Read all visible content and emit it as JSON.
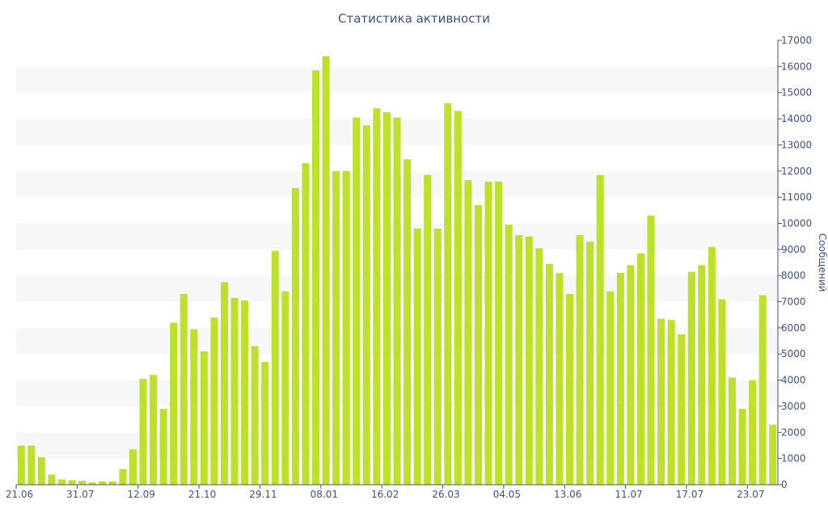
{
  "chart_data": {
    "type": "bar",
    "title": "Статистика активности",
    "ylabel": "Сообщений",
    "xlabel": "",
    "ylim": [
      0,
      17000
    ],
    "yticks": [
      0,
      1000,
      2000,
      3000,
      4000,
      5000,
      6000,
      7000,
      8000,
      9000,
      10000,
      11000,
      12000,
      13000,
      14000,
      15000,
      16000,
      17000
    ],
    "y_axis_side": "right",
    "grid": "alternating horizontal bands",
    "bar_color": "#bde12b",
    "band_color": "#f7f7f7",
    "axis_color": "#3d5283",
    "x_tick_labels": [
      {
        "label": "21.06",
        "index": 0
      },
      {
        "label": "31.07",
        "index": 6
      },
      {
        "label": "12.09",
        "index": 12
      },
      {
        "label": "21.10",
        "index": 18
      },
      {
        "label": "29.11",
        "index": 24
      },
      {
        "label": "08.01",
        "index": 30
      },
      {
        "label": "16.02",
        "index": 36
      },
      {
        "label": "26.03",
        "index": 42
      },
      {
        "label": "04.05",
        "index": 48
      },
      {
        "label": "13.06",
        "index": 54
      },
      {
        "label": "11.07",
        "index": 60
      },
      {
        "label": "17.07",
        "index": 66
      },
      {
        "label": "23.07",
        "index": 72
      }
    ],
    "values": [
      1500,
      1500,
      1050,
      380,
      200,
      170,
      150,
      90,
      130,
      130,
      600,
      1350,
      4050,
      4200,
      2900,
      6200,
      7300,
      5950,
      5100,
      6400,
      7750,
      7150,
      7050,
      5300,
      4700,
      8950,
      7400,
      11350,
      12300,
      15850,
      16400,
      12000,
      12000,
      14050,
      13750,
      14400,
      14250,
      14050,
      12450,
      9800,
      11850,
      9800,
      14600,
      14300,
      11650,
      10700,
      11600,
      11600,
      9950,
      9550,
      9500,
      9050,
      8450,
      8100,
      7300,
      9550,
      9300,
      11850,
      7400,
      8100,
      8400,
      8850,
      10300,
      6350,
      6300,
      5750,
      8150,
      8400,
      9100,
      7100,
      4100,
      2900,
      4000,
      7250,
      2300
    ]
  }
}
